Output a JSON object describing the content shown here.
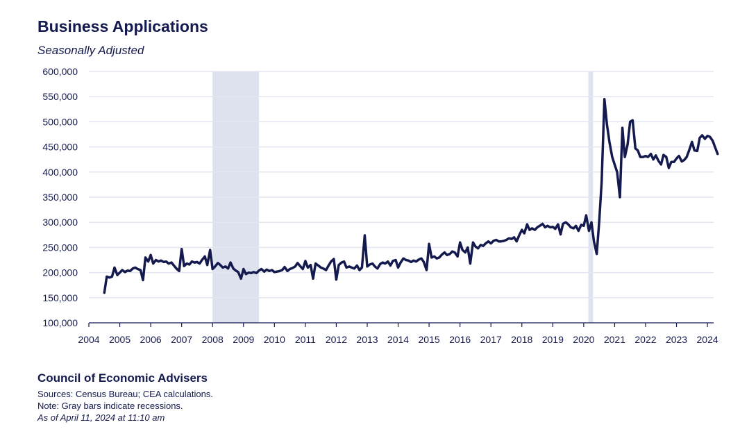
{
  "header": {
    "title": "Business Applications",
    "subtitle": "Seasonally Adjusted"
  },
  "footer": {
    "org": "Council of Economic Advisers",
    "sources": "Sources: Census Bureau; CEA calculations.",
    "note": "Note: Gray bars indicate recessions.",
    "asof": "As of April 11, 2024 at 11:10 am"
  },
  "colors": {
    "line": "#141a4d",
    "recession": "#dde2ee",
    "grid": "#e3e6f0",
    "text": "#141a4d"
  },
  "chart_data": {
    "type": "line",
    "title": "Business Applications",
    "subtitle": "Seasonally Adjusted",
    "xlabel": "",
    "ylabel": "",
    "xlim": [
      2004,
      2024.2
    ],
    "ylim": [
      100000,
      600000
    ],
    "x_ticks": [
      "2004",
      "2005",
      "2006",
      "2007",
      "2008",
      "2009",
      "2010",
      "2011",
      "2012",
      "2013",
      "2014",
      "2015",
      "2016",
      "2017",
      "2018",
      "2019",
      "2020",
      "2021",
      "2022",
      "2023",
      "2024"
    ],
    "y_ticks": [
      "100,000",
      "150,000",
      "200,000",
      "250,000",
      "300,000",
      "350,000",
      "400,000",
      "450,000",
      "500,000",
      "550,000",
      "600,000"
    ],
    "grid": "horizontal",
    "recessions": [
      [
        2008.0,
        2009.5
      ],
      [
        2020.15,
        2020.3
      ]
    ],
    "series": [
      {
        "points": [
          [
            2004.5,
            160000
          ],
          [
            2004.58,
            192000
          ],
          [
            2004.67,
            190000
          ],
          [
            2004.75,
            192000
          ],
          [
            2004.83,
            210000
          ],
          [
            2004.92,
            195000
          ],
          [
            2005.0,
            200000
          ],
          [
            2005.08,
            205000
          ],
          [
            2005.17,
            201000
          ],
          [
            2005.25,
            204000
          ],
          [
            2005.33,
            203000
          ],
          [
            2005.42,
            208000
          ],
          [
            2005.5,
            210000
          ],
          [
            2005.58,
            207000
          ],
          [
            2005.67,
            205000
          ],
          [
            2005.75,
            185000
          ],
          [
            2005.83,
            230000
          ],
          [
            2005.92,
            222000
          ],
          [
            2006.0,
            235000
          ],
          [
            2006.08,
            218000
          ],
          [
            2006.17,
            225000
          ],
          [
            2006.25,
            222000
          ],
          [
            2006.33,
            224000
          ],
          [
            2006.42,
            221000
          ],
          [
            2006.5,
            222000
          ],
          [
            2006.58,
            218000
          ],
          [
            2006.67,
            220000
          ],
          [
            2006.75,
            214000
          ],
          [
            2006.83,
            208000
          ],
          [
            2006.92,
            203000
          ],
          [
            2007.0,
            247000
          ],
          [
            2007.08,
            213000
          ],
          [
            2007.17,
            218000
          ],
          [
            2007.25,
            216000
          ],
          [
            2007.33,
            222000
          ],
          [
            2007.42,
            220000
          ],
          [
            2007.5,
            221000
          ],
          [
            2007.58,
            218000
          ],
          [
            2007.67,
            226000
          ],
          [
            2007.75,
            232000
          ],
          [
            2007.83,
            215000
          ],
          [
            2007.92,
            245000
          ],
          [
            2008.0,
            207000
          ],
          [
            2008.08,
            212000
          ],
          [
            2008.17,
            219000
          ],
          [
            2008.25,
            215000
          ],
          [
            2008.33,
            210000
          ],
          [
            2008.42,
            212000
          ],
          [
            2008.5,
            208000
          ],
          [
            2008.58,
            220000
          ],
          [
            2008.67,
            208000
          ],
          [
            2008.75,
            204000
          ],
          [
            2008.83,
            201000
          ],
          [
            2008.92,
            188000
          ],
          [
            2009.0,
            207000
          ],
          [
            2009.08,
            197000
          ],
          [
            2009.17,
            200000
          ],
          [
            2009.25,
            199000
          ],
          [
            2009.33,
            201000
          ],
          [
            2009.42,
            199000
          ],
          [
            2009.5,
            204000
          ],
          [
            2009.58,
            207000
          ],
          [
            2009.67,
            202000
          ],
          [
            2009.75,
            206000
          ],
          [
            2009.83,
            203000
          ],
          [
            2009.92,
            205000
          ],
          [
            2010.0,
            201000
          ],
          [
            2010.08,
            202000
          ],
          [
            2010.17,
            203000
          ],
          [
            2010.25,
            205000
          ],
          [
            2010.33,
            211000
          ],
          [
            2010.42,
            203000
          ],
          [
            2010.5,
            207000
          ],
          [
            2010.58,
            209000
          ],
          [
            2010.67,
            212000
          ],
          [
            2010.75,
            219000
          ],
          [
            2010.83,
            213000
          ],
          [
            2010.92,
            207000
          ],
          [
            2011.0,
            223000
          ],
          [
            2011.08,
            210000
          ],
          [
            2011.17,
            215000
          ],
          [
            2011.25,
            188000
          ],
          [
            2011.33,
            218000
          ],
          [
            2011.42,
            214000
          ],
          [
            2011.5,
            210000
          ],
          [
            2011.58,
            208000
          ],
          [
            2011.67,
            205000
          ],
          [
            2011.75,
            214000
          ],
          [
            2011.83,
            222000
          ],
          [
            2011.92,
            227000
          ],
          [
            2012.0,
            186000
          ],
          [
            2012.08,
            215000
          ],
          [
            2012.17,
            220000
          ],
          [
            2012.25,
            222000
          ],
          [
            2012.33,
            210000
          ],
          [
            2012.42,
            212000
          ],
          [
            2012.5,
            210000
          ],
          [
            2012.58,
            208000
          ],
          [
            2012.67,
            214000
          ],
          [
            2012.75,
            205000
          ],
          [
            2012.83,
            210000
          ],
          [
            2012.92,
            274000
          ],
          [
            2013.0,
            212000
          ],
          [
            2013.08,
            216000
          ],
          [
            2013.17,
            218000
          ],
          [
            2013.25,
            212000
          ],
          [
            2013.33,
            208000
          ],
          [
            2013.42,
            217000
          ],
          [
            2013.5,
            220000
          ],
          [
            2013.58,
            218000
          ],
          [
            2013.67,
            222000
          ],
          [
            2013.75,
            214000
          ],
          [
            2013.83,
            223000
          ],
          [
            2013.92,
            225000
          ],
          [
            2014.0,
            210000
          ],
          [
            2014.08,
            220000
          ],
          [
            2014.17,
            228000
          ],
          [
            2014.25,
            225000
          ],
          [
            2014.33,
            224000
          ],
          [
            2014.42,
            221000
          ],
          [
            2014.5,
            224000
          ],
          [
            2014.58,
            222000
          ],
          [
            2014.67,
            226000
          ],
          [
            2014.75,
            228000
          ],
          [
            2014.83,
            221000
          ],
          [
            2014.92,
            205000
          ],
          [
            2015.0,
            257000
          ],
          [
            2015.08,
            230000
          ],
          [
            2015.17,
            232000
          ],
          [
            2015.25,
            228000
          ],
          [
            2015.33,
            230000
          ],
          [
            2015.42,
            236000
          ],
          [
            2015.5,
            240000
          ],
          [
            2015.58,
            235000
          ],
          [
            2015.67,
            237000
          ],
          [
            2015.75,
            242000
          ],
          [
            2015.83,
            240000
          ],
          [
            2015.92,
            232000
          ],
          [
            2016.0,
            260000
          ],
          [
            2016.08,
            245000
          ],
          [
            2016.17,
            240000
          ],
          [
            2016.25,
            250000
          ],
          [
            2016.33,
            218000
          ],
          [
            2016.42,
            260000
          ],
          [
            2016.5,
            252000
          ],
          [
            2016.58,
            248000
          ],
          [
            2016.67,
            255000
          ],
          [
            2016.75,
            253000
          ],
          [
            2016.83,
            258000
          ],
          [
            2016.92,
            262000
          ],
          [
            2017.0,
            258000
          ],
          [
            2017.08,
            263000
          ],
          [
            2017.17,
            265000
          ],
          [
            2017.25,
            262000
          ],
          [
            2017.33,
            262000
          ],
          [
            2017.42,
            263000
          ],
          [
            2017.5,
            265000
          ],
          [
            2017.58,
            268000
          ],
          [
            2017.67,
            267000
          ],
          [
            2017.75,
            270000
          ],
          [
            2017.83,
            262000
          ],
          [
            2017.92,
            275000
          ],
          [
            2018.0,
            285000
          ],
          [
            2018.08,
            278000
          ],
          [
            2018.17,
            296000
          ],
          [
            2018.25,
            285000
          ],
          [
            2018.33,
            288000
          ],
          [
            2018.42,
            285000
          ],
          [
            2018.5,
            290000
          ],
          [
            2018.58,
            293000
          ],
          [
            2018.67,
            297000
          ],
          [
            2018.75,
            290000
          ],
          [
            2018.83,
            293000
          ],
          [
            2018.92,
            290000
          ],
          [
            2019.0,
            291000
          ],
          [
            2019.08,
            287000
          ],
          [
            2019.17,
            296000
          ],
          [
            2019.25,
            276000
          ],
          [
            2019.33,
            297000
          ],
          [
            2019.42,
            300000
          ],
          [
            2019.5,
            296000
          ],
          [
            2019.58,
            290000
          ],
          [
            2019.67,
            288000
          ],
          [
            2019.75,
            293000
          ],
          [
            2019.83,
            283000
          ],
          [
            2019.92,
            295000
          ],
          [
            2020.0,
            293000
          ],
          [
            2020.08,
            314000
          ],
          [
            2020.17,
            283000
          ],
          [
            2020.25,
            300000
          ],
          [
            2020.33,
            262000
          ],
          [
            2020.42,
            237000
          ],
          [
            2020.5,
            300000
          ],
          [
            2020.58,
            380000
          ],
          [
            2020.67,
            545000
          ],
          [
            2020.75,
            495000
          ],
          [
            2020.83,
            460000
          ],
          [
            2020.92,
            430000
          ],
          [
            2021.0,
            415000
          ],
          [
            2021.08,
            400000
          ],
          [
            2021.17,
            350000
          ],
          [
            2021.25,
            488000
          ],
          [
            2021.33,
            430000
          ],
          [
            2021.42,
            455000
          ],
          [
            2021.5,
            500000
          ],
          [
            2021.58,
            503000
          ],
          [
            2021.67,
            447000
          ],
          [
            2021.75,
            443000
          ],
          [
            2021.83,
            430000
          ],
          [
            2021.92,
            430000
          ],
          [
            2022.0,
            432000
          ],
          [
            2022.08,
            430000
          ],
          [
            2022.17,
            436000
          ],
          [
            2022.25,
            425000
          ],
          [
            2022.33,
            433000
          ],
          [
            2022.42,
            422000
          ],
          [
            2022.5,
            415000
          ],
          [
            2022.58,
            434000
          ],
          [
            2022.67,
            430000
          ],
          [
            2022.75,
            408000
          ],
          [
            2022.83,
            420000
          ],
          [
            2022.92,
            420000
          ],
          [
            2023.0,
            427000
          ],
          [
            2023.08,
            432000
          ],
          [
            2023.17,
            421000
          ],
          [
            2023.25,
            424000
          ],
          [
            2023.33,
            430000
          ],
          [
            2023.42,
            445000
          ],
          [
            2023.5,
            460000
          ],
          [
            2023.58,
            443000
          ],
          [
            2023.67,
            442000
          ],
          [
            2023.75,
            468000
          ],
          [
            2023.83,
            473000
          ],
          [
            2023.92,
            466000
          ],
          [
            2024.0,
            472000
          ],
          [
            2024.08,
            470000
          ],
          [
            2024.17,
            462000
          ],
          [
            2024.25,
            449000
          ],
          [
            2024.33,
            436000
          ]
        ]
      }
    ]
  }
}
